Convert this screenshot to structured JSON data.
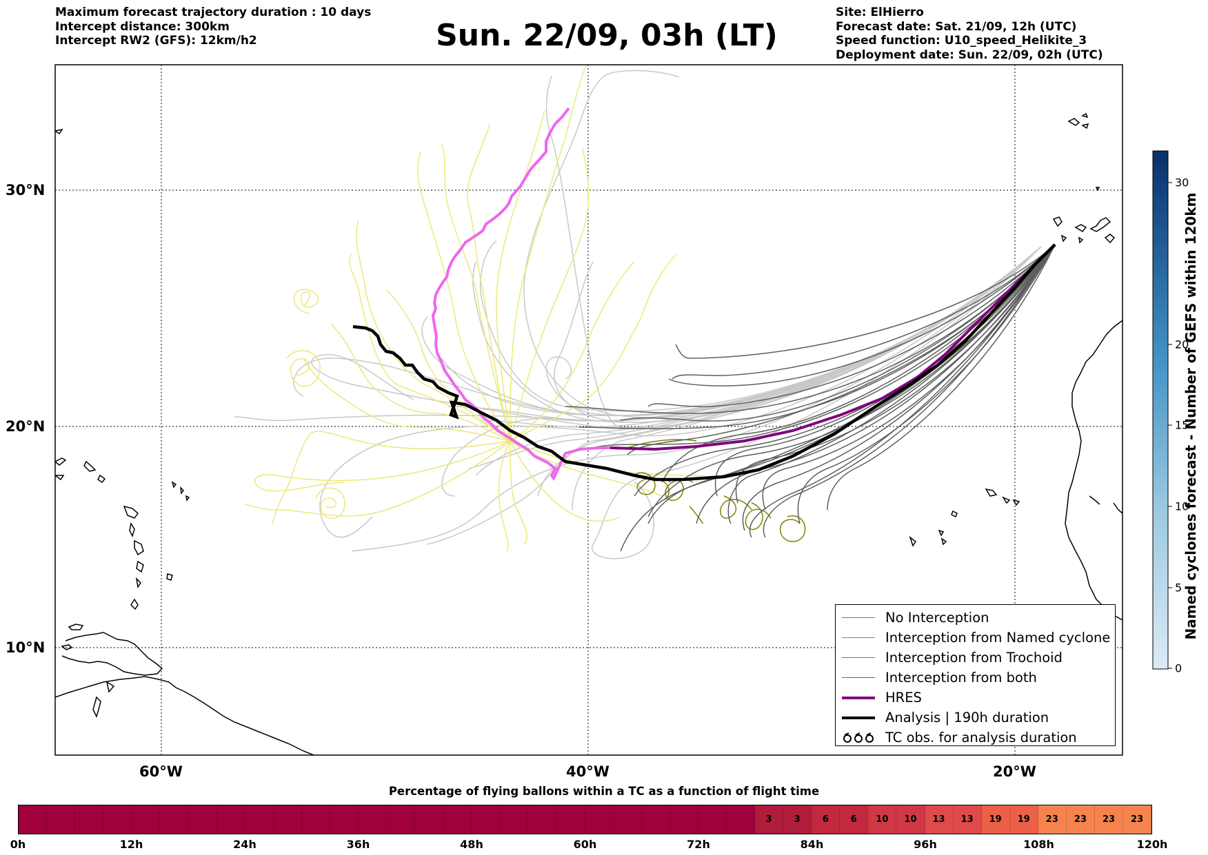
{
  "header": {
    "left_lines": [
      "Maximum forecast trajectory duration : 10 days",
      "Intercept distance: 300km",
      "Intercept RW2 (GFS):  12km/h2"
    ],
    "title": "Sun. 22/09, 03h (LT)",
    "right_lines": [
      "Site: ElHierro",
      "Forecast date: Sat. 21/09, 12h (UTC)",
      "Speed function: U10_speed_Helikite_3",
      "Deployment date: Sun. 22/09, 02h (UTC)"
    ]
  },
  "map": {
    "lat_labels": [
      "30°N",
      "20°N",
      "10°N"
    ],
    "lon_labels": [
      "60°W",
      "40°W",
      "20°W"
    ]
  },
  "legend": {
    "items": [
      {
        "label": "No Interception",
        "color": "#777777",
        "width": 1.5
      },
      {
        "label": "Interception from Named cyclone",
        "color": "#f05a28",
        "width": 1.5
      },
      {
        "label": "Interception from Trochoid",
        "color": "#808000",
        "width": 1.5
      },
      {
        "label": "Interception from both",
        "color": "#2e8b2e",
        "width": 1.5
      },
      {
        "label": "HRES",
        "color": "#800080",
        "width": 4
      },
      {
        "label": "Analysis | 190h duration",
        "color": "#000000",
        "width": 4
      },
      {
        "label": "TC obs. for analysis duration",
        "icon": "tc-obs-icon"
      }
    ]
  },
  "colorbar": {
    "label": "Named cyclones forecast - Number of GEFS within 120km",
    "ticks": [
      "0",
      "5",
      "10",
      "15",
      "20",
      "30"
    ]
  },
  "time_bar": {
    "title": "Percentage of flying ballons within a TC as a function of flight time",
    "cells": [
      "",
      "",
      "",
      "",
      "",
      "",
      "",
      "",
      "",
      "",
      "",
      "",
      "",
      "",
      "",
      "",
      "",
      "",
      "",
      "",
      "",
      "",
      "",
      "",
      "",
      "",
      "3",
      "3",
      "6",
      "6",
      "10",
      "10",
      "13",
      "13",
      "19",
      "19",
      "23",
      "23",
      "23",
      "23"
    ],
    "ticks": [
      "0h",
      "12h",
      "24h",
      "36h",
      "48h",
      "60h",
      "72h",
      "84h",
      "96h",
      "108h",
      "120h"
    ]
  }
}
